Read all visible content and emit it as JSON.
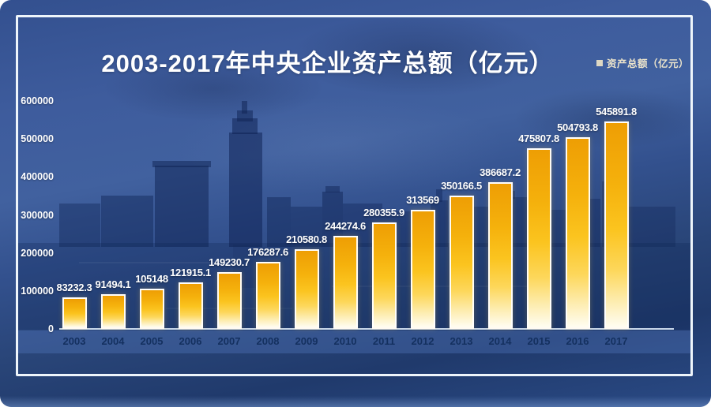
{
  "title": "2003-2017年中央企业资产总额（亿元）",
  "legend": {
    "label": "资产总额（亿元）",
    "marker_color": "#ded8c3",
    "text_color": "#ece4cb"
  },
  "colors": {
    "panel_blue": "#33518e",
    "frame": "#eef5fb",
    "bar_top": "#ee9e04",
    "bar_bottom": "#fffdf2",
    "bar_border": "#ffffff",
    "value_label": "#ffffff",
    "ytick_label": "#ffffff",
    "year_label": "#14305f",
    "axis_line": "#d7e5f4"
  },
  "chart_data": {
    "type": "bar",
    "title": "2003-2017年中央企业资产总额（亿元）",
    "categories": [
      "2003",
      "2004",
      "2005",
      "2006",
      "2007",
      "2008",
      "2009",
      "2010",
      "2011",
      "2012",
      "2013",
      "2014",
      "2015",
      "2016",
      "2017"
    ],
    "values": [
      83232.3,
      91494.1,
      105148,
      121915.1,
      149230.7,
      176287.6,
      210580.8,
      244274.6,
      280355.9,
      313569,
      350166.5,
      386687.2,
      475807.8,
      504793.8,
      545891.8
    ],
    "value_labels": [
      "83232.3",
      "91494.1",
      "105148",
      "121915.1",
      "149230.7",
      "176287.6",
      "210580.8",
      "244274.6",
      "280355.9",
      "313569",
      "350166.5",
      "386687.2",
      "475807.8",
      "504793.8",
      "545891.8"
    ],
    "xlabel": "",
    "ylabel": "",
    "ylim": [
      0,
      600000
    ],
    "yticks": [
      0,
      100000,
      200000,
      300000,
      400000,
      500000,
      600000
    ],
    "grid": false,
    "legend": [
      "资产总额（亿元）"
    ],
    "legend_position": "top-right"
  }
}
